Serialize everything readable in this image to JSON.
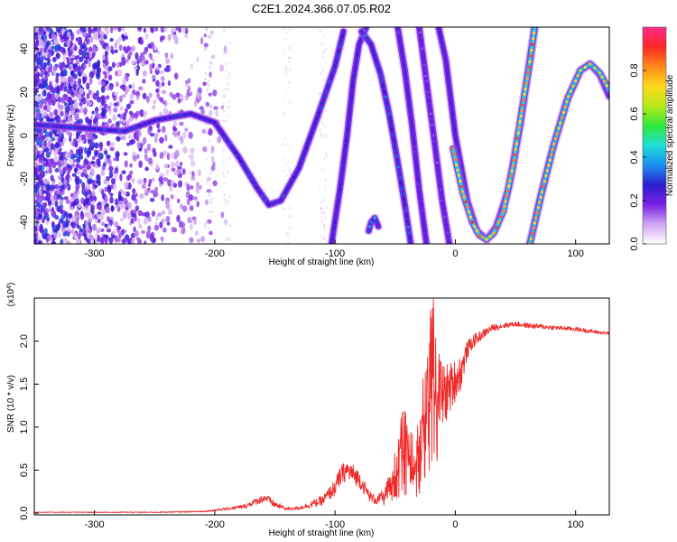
{
  "title": "C2E1.2024.366.07.05.R02",
  "chart_data": [
    {
      "type": "heatmap",
      "xlabel": "Height of straight line (km)",
      "ylabel": "Frequency (Hz)",
      "xlim": [
        -350,
        128
      ],
      "ylim": [
        -50,
        50
      ],
      "xticks": [
        -300,
        -200,
        -100,
        0,
        100
      ],
      "yticks": [
        -40,
        -20,
        0,
        20,
        40
      ],
      "colorbar": {
        "label": "Normalized spectral amplitude",
        "range": [
          0,
          1
        ],
        "ticks": [
          "0.0",
          "0.2",
          "0.4",
          "0.6",
          "0.8"
        ],
        "tick_values": [
          0,
          0.2,
          0.4,
          0.6,
          0.8
        ],
        "colors": [
          "#ffffff",
          "#cfa6f0",
          "#7a1fe6",
          "#2b1fd0",
          "#1c8ff0",
          "#1fe0d8",
          "#2ee83a",
          "#b8e81a",
          "#ffd81a",
          "#ff8a1a",
          "#ff2626",
          "#ff2d8e"
        ]
      },
      "traces": [
        {
          "amp": 0.28,
          "points": [
            [
              -350,
              5
            ],
            [
              -300,
              3
            ],
            [
              -275,
              2
            ],
            [
              -250,
              7
            ],
            [
              -220,
              10
            ],
            [
              -200,
              6
            ],
            [
              -180,
              -10
            ],
            [
              -165,
              -24
            ],
            [
              -155,
              -32
            ],
            [
              -145,
              -30
            ],
            [
              -130,
              -15
            ],
            [
              -115,
              8
            ],
            [
              -100,
              32
            ],
            [
              -93,
              48
            ]
          ]
        },
        {
          "amp": 0.25,
          "points": [
            [
              -103,
              -50
            ],
            [
              -96,
              -25
            ],
            [
              -90,
              0
            ],
            [
              -85,
              25
            ],
            [
              -80,
              42
            ],
            [
              -74,
              50
            ]
          ]
        },
        {
          "amp": 0.3,
          "points": [
            [
              -78,
              48
            ],
            [
              -70,
              42
            ],
            [
              -62,
              28
            ],
            [
              -55,
              10
            ],
            [
              -48,
              -12
            ],
            [
              -42,
              -32
            ],
            [
              -37,
              -50
            ]
          ]
        },
        {
          "amp": 0.2,
          "points": [
            [
              -48,
              50
            ],
            [
              -42,
              30
            ],
            [
              -36,
              5
            ],
            [
              -30,
              -25
            ],
            [
              -24,
              -50
            ]
          ]
        },
        {
          "amp": 0.18,
          "points": [
            [
              -30,
              50
            ],
            [
              -24,
              25
            ],
            [
              -18,
              0
            ],
            [
              -11,
              -30
            ],
            [
              -5,
              -50
            ]
          ]
        },
        {
          "amp": 0.22,
          "points": [
            [
              -14,
              50
            ],
            [
              -8,
              35
            ],
            [
              0,
              0
            ],
            [
              10,
              -30
            ],
            [
              18,
              -44
            ],
            [
              26,
              -48
            ],
            [
              34,
              -42
            ],
            [
              44,
              -25
            ],
            [
              54,
              5
            ],
            [
              62,
              35
            ],
            [
              66,
              50
            ]
          ]
        },
        {
          "amp": 0.8,
          "points": [
            [
              -2,
              -6
            ],
            [
              6,
              -26
            ],
            [
              14,
              -40
            ],
            [
              20,
              -46
            ],
            [
              26,
              -48
            ],
            [
              32,
              -45
            ],
            [
              40,
              -35
            ],
            [
              48,
              -14
            ],
            [
              56,
              14
            ],
            [
              62,
              34
            ],
            [
              66,
              50
            ]
          ]
        },
        {
          "amp": 0.18,
          "points": [
            [
              62,
              -50
            ],
            [
              70,
              -30
            ],
            [
              80,
              -8
            ],
            [
              92,
              15
            ],
            [
              104,
              30
            ],
            [
              112,
              33
            ],
            [
              120,
              28
            ],
            [
              128,
              18
            ]
          ]
        },
        {
          "amp": 0.75,
          "points": [
            [
              62,
              -50
            ],
            [
              72,
              -26
            ],
            [
              82,
              -4
            ],
            [
              94,
              18
            ],
            [
              104,
              30
            ],
            [
              112,
              33
            ],
            [
              120,
              29
            ],
            [
              128,
              21
            ]
          ]
        },
        {
          "amp": 0.35,
          "points": [
            [
              -72,
              -44
            ],
            [
              -70,
              -40
            ],
            [
              -67,
              -38
            ],
            [
              -64,
              -42
            ]
          ]
        }
      ]
    },
    {
      "type": "line",
      "xlabel": "Height of straight line (km)",
      "ylabel": "SNR (10 * v/v)",
      "y_multiplier": "(x10^4)",
      "xlim": [
        -350,
        128
      ],
      "ylim": [
        -0.02,
        2.5
      ],
      "xticks": [
        -300,
        -200,
        -100,
        0,
        100
      ],
      "yticks": [
        0.0,
        0.5,
        1.0,
        1.5,
        2.0
      ],
      "yticklabels": [
        "0.0",
        "0.5",
        "1.0",
        "1.5",
        "2.0"
      ],
      "series": [
        {
          "color": "#ee2a2a",
          "x": [
            -350,
            -300,
            -250,
            -210,
            -190,
            -175,
            -165,
            -158,
            -150,
            -140,
            -130,
            -120,
            -110,
            -100,
            -95,
            -90,
            -85,
            -80,
            -75,
            -70,
            -65,
            -60,
            -55,
            -50,
            -45,
            -40,
            -35,
            -30,
            -25,
            -20,
            -15,
            -10,
            -5,
            0,
            5,
            10,
            15,
            20,
            25,
            30,
            40,
            50,
            60,
            70,
            80,
            90,
            100,
            110,
            120,
            128
          ],
          "y": [
            0.01,
            0.01,
            0.01,
            0.02,
            0.05,
            0.08,
            0.14,
            0.18,
            0.1,
            0.05,
            0.06,
            0.1,
            0.15,
            0.3,
            0.44,
            0.5,
            0.45,
            0.4,
            0.28,
            0.18,
            0.15,
            0.2,
            0.3,
            0.65,
            0.9,
            0.8,
            0.7,
            0.85,
            1.3,
            2.2,
            1.5,
            1.35,
            1.45,
            1.55,
            1.65,
            1.9,
            2.0,
            2.05,
            2.1,
            2.15,
            2.18,
            2.2,
            2.18,
            2.17,
            2.16,
            2.15,
            2.14,
            2.12,
            2.1,
            2.09
          ],
          "noise": [
            0.005,
            0.005,
            0.006,
            0.008,
            0.015,
            0.025,
            0.04,
            0.05,
            0.04,
            0.02,
            0.02,
            0.04,
            0.06,
            0.1,
            0.12,
            0.12,
            0.12,
            0.1,
            0.08,
            0.06,
            0.06,
            0.08,
            0.15,
            0.3,
            0.35,
            0.35,
            0.35,
            0.4,
            0.5,
            0.6,
            0.5,
            0.4,
            0.3,
            0.25,
            0.2,
            0.1,
            0.08,
            0.06,
            0.05,
            0.04,
            0.03,
            0.03,
            0.03,
            0.03,
            0.025,
            0.025,
            0.025,
            0.025,
            0.02,
            0.02
          ]
        }
      ]
    }
  ]
}
